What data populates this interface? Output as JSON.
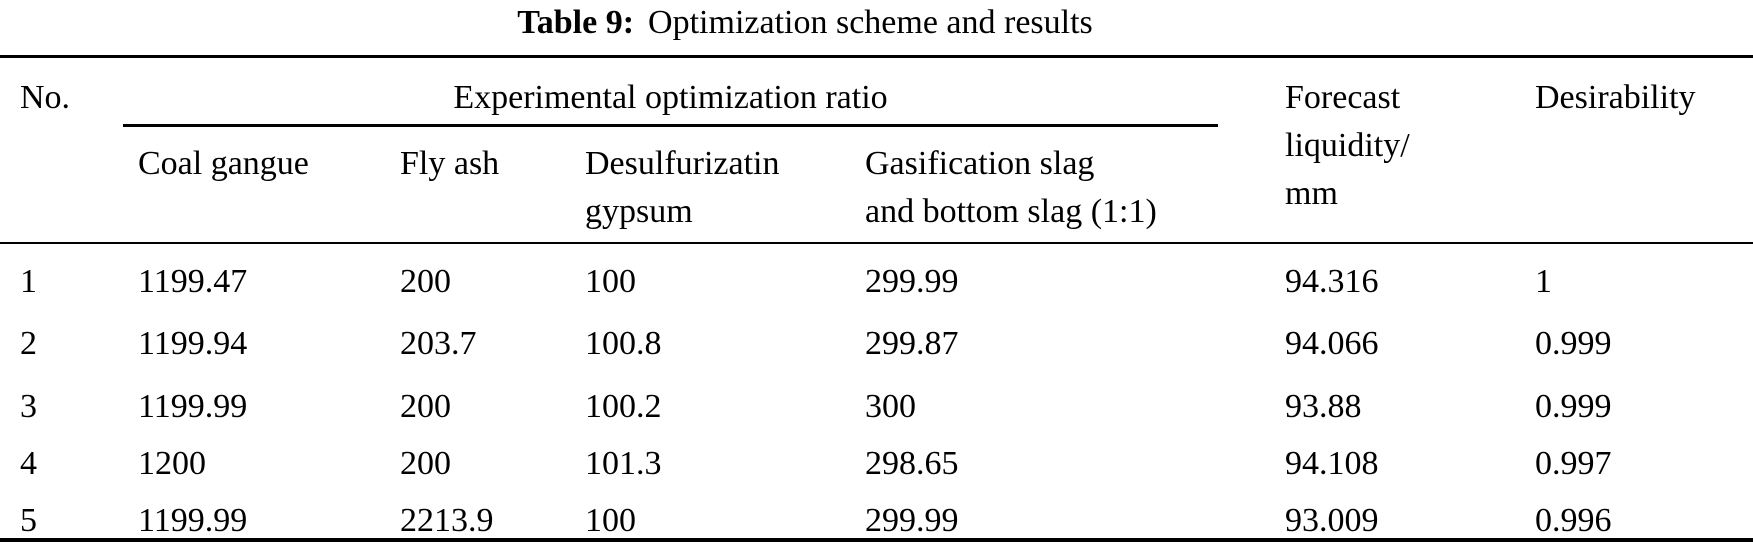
{
  "title": {
    "label": "Table 9:",
    "text": "Optimization scheme and results"
  },
  "colors": {
    "background": "#ffffff",
    "text": "#000000",
    "rule": "#000000"
  },
  "table": {
    "columns": {
      "no": "No.",
      "spanner": "Experimental optimization ratio",
      "coal_gangue": "Coal gangue",
      "fly_ash": "Fly ash",
      "desulfurization_gypsum_lines": [
        "Desulfurizatin",
        "gypsum"
      ],
      "gasification_slag_lines": [
        "Gasification slag",
        "and bottom slag (1:1)"
      ],
      "forecast_lines": [
        "Forecast",
        "liquidity/",
        "mm"
      ],
      "desirability": "Desirability"
    },
    "rows": [
      {
        "no": "1",
        "coal_gangue": "1199.47",
        "fly_ash": "200",
        "desulfurization_gypsum": "100",
        "gasification_slag": "299.99",
        "forecast_liquidity": "94.316",
        "desirability": "1"
      },
      {
        "no": "2",
        "coal_gangue": "1199.94",
        "fly_ash": "203.7",
        "desulfurization_gypsum": "100.8",
        "gasification_slag": "299.87",
        "forecast_liquidity": "94.066",
        "desirability": "0.999"
      },
      {
        "no": "3",
        "coal_gangue": "1199.99",
        "fly_ash": "200",
        "desulfurization_gypsum": "100.2",
        "gasification_slag": "300",
        "forecast_liquidity": "93.88",
        "desirability": "0.999"
      },
      {
        "no": "4",
        "coal_gangue": "1200",
        "fly_ash": "200",
        "desulfurization_gypsum": "101.3",
        "gasification_slag": "298.65",
        "forecast_liquidity": "94.108",
        "desirability": "0.997"
      },
      {
        "no": "5",
        "coal_gangue": "1199.99",
        "fly_ash": "2213.9",
        "desulfurization_gypsum": "100",
        "gasification_slag": "299.99",
        "forecast_liquidity": "93.009",
        "desirability": "0.996"
      }
    ]
  }
}
